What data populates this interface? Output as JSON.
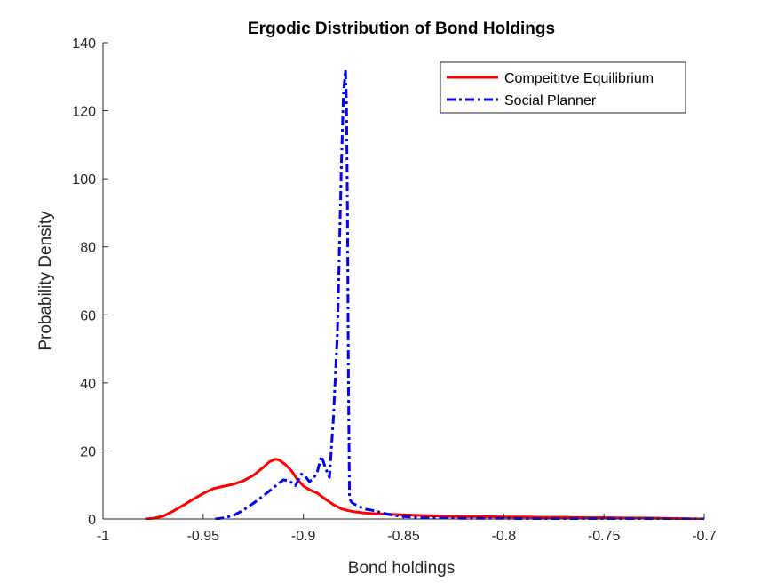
{
  "chart_data": {
    "type": "line",
    "title": "Ergodic Distribution of Bond Holdings",
    "xlabel": "Bond holdings",
    "ylabel": "Probability Density",
    "xlim": [
      -1,
      -0.7
    ],
    "ylim": [
      0,
      140
    ],
    "xticks": [
      -1,
      -0.95,
      -0.9,
      -0.85,
      -0.8,
      -0.75,
      -0.7
    ],
    "xtick_labels": [
      "-1",
      "-0.95",
      "-0.9",
      "-0.85",
      "-0.8",
      "-0.75",
      "-0.7"
    ],
    "yticks": [
      0,
      20,
      40,
      60,
      80,
      100,
      120,
      140
    ],
    "ytick_labels": [
      "0",
      "20",
      "40",
      "60",
      "80",
      "100",
      "120",
      "140"
    ],
    "grid": false,
    "legend_position": "top-right",
    "series": [
      {
        "name": "Compeititve Equilibrium",
        "color": "#ff0000",
        "line_style": "solid",
        "x": [
          -0.979,
          -0.975,
          -0.97,
          -0.965,
          -0.96,
          -0.955,
          -0.95,
          -0.945,
          -0.94,
          -0.935,
          -0.93,
          -0.925,
          -0.92,
          -0.917,
          -0.914,
          -0.912,
          -0.909,
          -0.906,
          -0.903,
          -0.9,
          -0.897,
          -0.893,
          -0.889,
          -0.885,
          -0.881,
          -0.878,
          -0.874,
          -0.87,
          -0.866,
          -0.862,
          -0.858,
          -0.854,
          -0.85,
          -0.845,
          -0.84,
          -0.835,
          -0.83,
          -0.82,
          -0.81,
          -0.8,
          -0.79,
          -0.78,
          -0.77,
          -0.76,
          -0.75,
          -0.74,
          -0.73,
          -0.72,
          -0.71,
          -0.701
        ],
        "y": [
          0.0,
          0.2,
          0.8,
          2.3,
          4.0,
          5.8,
          7.5,
          8.9,
          9.6,
          10.2,
          11.2,
          12.8,
          15.2,
          16.8,
          17.6,
          17.3,
          16.0,
          14.2,
          11.6,
          9.7,
          8.6,
          7.6,
          5.8,
          4.2,
          3.0,
          2.5,
          2.1,
          1.8,
          1.6,
          1.5,
          1.4,
          1.3,
          1.2,
          1.1,
          1.0,
          0.9,
          0.8,
          0.7,
          0.7,
          0.6,
          0.6,
          0.5,
          0.5,
          0.4,
          0.4,
          0.3,
          0.3,
          0.2,
          0.1,
          0.0
        ]
      },
      {
        "name": "Social Planner",
        "color": "#0000ff",
        "line_style": "dashdot",
        "x": [
          -0.944,
          -0.94,
          -0.935,
          -0.93,
          -0.925,
          -0.92,
          -0.915,
          -0.91,
          -0.907,
          -0.904,
          -0.901,
          -0.899,
          -0.897,
          -0.895,
          -0.893,
          -0.891,
          -0.889,
          -0.887,
          -0.885,
          -0.883,
          -0.882,
          -0.881,
          -0.88,
          -0.879,
          -0.8785,
          -0.878,
          -0.8775,
          -0.877,
          -0.876,
          -0.875,
          -0.872,
          -0.869,
          -0.866,
          -0.862,
          -0.858,
          -0.853,
          -0.849,
          -0.845,
          -0.84,
          -0.83,
          -0.82,
          -0.81,
          -0.8,
          -0.79,
          -0.78,
          -0.77,
          -0.76,
          -0.75,
          -0.74,
          -0.73,
          -0.72,
          -0.71,
          -0.7
        ],
        "y": [
          0.0,
          0.3,
          1.0,
          2.6,
          4.6,
          6.8,
          9.2,
          11.5,
          11.2,
          9.8,
          13.2,
          12.5,
          11.0,
          11.8,
          14.0,
          18.5,
          15.0,
          12.2,
          30.0,
          55.0,
          80.0,
          105.0,
          125.0,
          132.0,
          122.0,
          90.0,
          40.0,
          6.0,
          5.0,
          4.5,
          3.6,
          2.9,
          2.6,
          2.0,
          1.4,
          0.9,
          0.7,
          0.5,
          0.4,
          0.3,
          0.2,
          0.2,
          0.2,
          0.1,
          0.1,
          0.1,
          0.1,
          0.1,
          0.1,
          0.1,
          0.0,
          0.0,
          0.0
        ]
      }
    ]
  }
}
